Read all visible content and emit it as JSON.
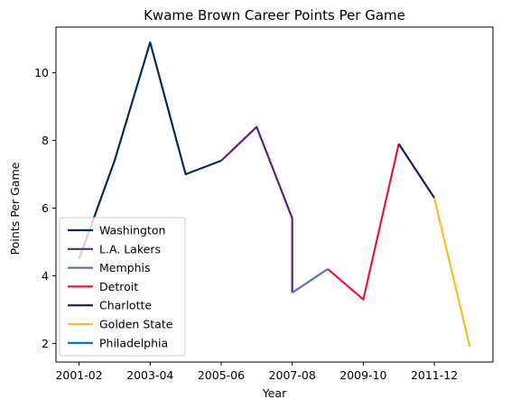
{
  "chart_data": {
    "type": "line",
    "title": "Kwame Brown Career Points Per Game",
    "xlabel": "Year",
    "ylabel": "Points Per Game",
    "x": [
      "2001-02",
      "2002-03",
      "2003-04",
      "2004-05",
      "2005-06",
      "2006-07",
      "2007-08",
      "2007-08",
      "2008-09",
      "2009-10",
      "2010-11",
      "2011-12",
      "2011-12",
      "2012-13"
    ],
    "x_tick_labels": [
      "2001-02",
      "2003-04",
      "2005-06",
      "2007-08",
      "2009-10",
      "2011-12"
    ],
    "xlim": [
      -0.65,
      11.65
    ],
    "ylim": [
      1.45,
      11.35
    ],
    "y_ticks": [
      2,
      4,
      6,
      8,
      10
    ],
    "grid": false,
    "legend_position": "lower-left",
    "series": [
      {
        "name": "Washington",
        "color": "#002B5C",
        "points": [
          [
            0,
            4.5
          ],
          [
            1,
            7.4
          ],
          [
            2,
            10.9
          ],
          [
            3,
            7.0
          ],
          [
            4,
            7.4
          ]
        ]
      },
      {
        "name": "L.A. Lakers",
        "color": "#552583",
        "points": [
          [
            4,
            7.4
          ],
          [
            5,
            8.4
          ],
          [
            6,
            5.7
          ],
          [
            6,
            3.5
          ]
        ]
      },
      {
        "name": "Memphis",
        "color": "#5D76A9",
        "points": [
          [
            6,
            3.5
          ],
          [
            7,
            4.2
          ]
        ]
      },
      {
        "name": "Detroit",
        "color": "#E31837",
        "points": [
          [
            7,
            4.2
          ],
          [
            8,
            3.3
          ],
          [
            9,
            7.9
          ]
        ]
      },
      {
        "name": "Charlotte",
        "color": "#1D1160",
        "points": [
          [
            9,
            7.9
          ],
          [
            10,
            6.3
          ]
        ]
      },
      {
        "name": "Golden State",
        "color": "#FDB927",
        "points": [
          [
            10,
            6.3
          ],
          [
            11,
            1.9
          ]
        ]
      },
      {
        "name": "Philadelphia",
        "color": "#006BB6",
        "points": []
      }
    ]
  }
}
